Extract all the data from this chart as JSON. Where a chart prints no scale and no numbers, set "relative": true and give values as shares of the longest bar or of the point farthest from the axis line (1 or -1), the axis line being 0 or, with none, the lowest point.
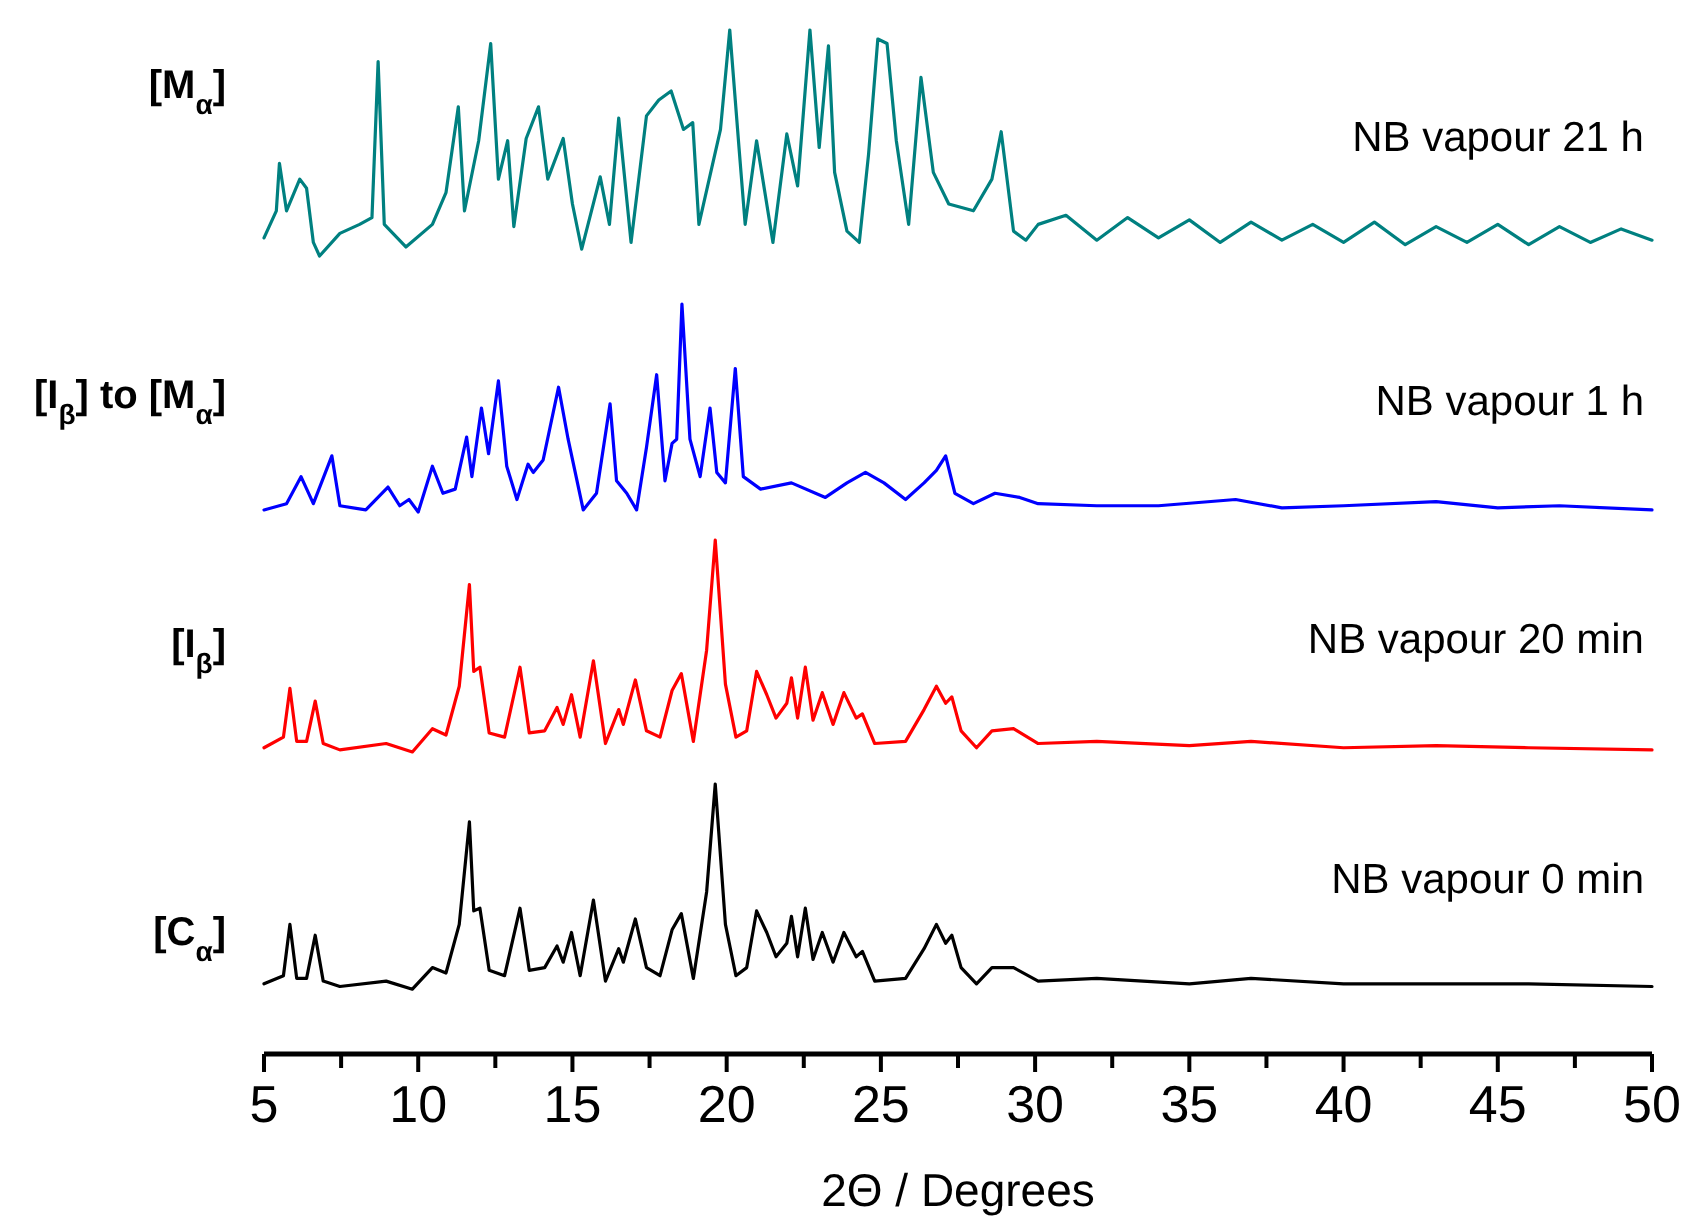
{
  "chart_data": [
    {
      "type": "line",
      "relative": true,
      "xlim": [
        5,
        50
      ],
      "tick_labels": false,
      "annotations": [
        "[M$_{α}$]"
      ],
      "series": [
        {
          "name": "NB vapour 21 h",
          "color": "#008080",
          "x": [
            5.0,
            5.4,
            5.5,
            5.73,
            6.16,
            6.38,
            6.6,
            6.8,
            7.46,
            8.1,
            8.5,
            8.7,
            8.9,
            9.6,
            10.46,
            10.9,
            11.3,
            11.5,
            11.96,
            12.35,
            12.6,
            12.9,
            13.1,
            13.5,
            13.9,
            14.2,
            14.7,
            15.0,
            15.3,
            15.9,
            16.2,
            16.5,
            16.9,
            17.4,
            17.8,
            18.2,
            18.6,
            18.9,
            19.1,
            19.8,
            20.1,
            20.4,
            20.6,
            20.97,
            21.5,
            21.95,
            22.3,
            22.7,
            23.0,
            23.3,
            23.5,
            23.9,
            24.3,
            24.6,
            24.9,
            25.2,
            25.5,
            25.9,
            26.3,
            26.7,
            27.2,
            28.0,
            28.6,
            28.9,
            29.3,
            29.7,
            30.1,
            31,
            32,
            33,
            34,
            35,
            36,
            37,
            38,
            39,
            40,
            41,
            42,
            43,
            44,
            45,
            46,
            47,
            48,
            49,
            50
          ],
          "values": [
            0.08,
            0.2,
            0.41,
            0.2,
            0.34,
            0.3,
            0.06,
            0,
            0.1,
            0.14,
            0.17,
            0.86,
            0.14,
            0.04,
            0.14,
            0.28,
            0.66,
            0.2,
            0.51,
            0.94,
            0.34,
            0.51,
            0.13,
            0.52,
            0.66,
            0.34,
            0.52,
            0.23,
            0.03,
            0.35,
            0.14,
            0.61,
            0.06,
            0.62,
            0.69,
            0.73,
            0.56,
            0.59,
            0.14,
            0.56,
            1.0,
            0.48,
            0.14,
            0.51,
            0.06,
            0.54,
            0.31,
            1.0,
            0.48,
            0.93,
            0.37,
            0.11,
            0.06,
            0.45,
            0.96,
            0.94,
            0.51,
            0.14,
            0.79,
            0.37,
            0.23,
            0.2,
            0.34,
            0.55,
            0.11,
            0.07,
            0.14,
            0.18,
            0.07,
            0.17,
            0.08,
            0.16,
            0.06,
            0.15,
            0.07,
            0.14,
            0.06,
            0.15,
            0.05,
            0.13,
            0.06,
            0.14,
            0.05,
            0.13,
            0.06,
            0.12,
            0.07
          ]
        }
      ]
    },
    {
      "type": "line",
      "relative": true,
      "xlim": [
        5,
        50
      ],
      "tick_labels": false,
      "annotations": [
        "[I$_{β}$] to [M$_{α}$]"
      ],
      "series": [
        {
          "name": "NB vapour 1 h",
          "color": "#0000ff",
          "x": [
            5.0,
            5.73,
            6.2,
            6.6,
            7.2,
            7.46,
            8.3,
            9.02,
            9.4,
            9.7,
            10.0,
            10.46,
            10.8,
            11.2,
            11.57,
            11.74,
            12.05,
            12.28,
            12.6,
            12.87,
            13.2,
            13.56,
            13.73,
            14.05,
            14.55,
            14.86,
            15.35,
            15.78,
            16.22,
            16.43,
            16.76,
            17.08,
            17.4,
            17.73,
            18.0,
            18.23,
            18.38,
            18.55,
            18.81,
            19.14,
            19.46,
            19.68,
            19.96,
            20.28,
            20.54,
            21.1,
            22.1,
            23.2,
            23.9,
            24.5,
            25.1,
            25.8,
            26.4,
            26.8,
            27.1,
            27.4,
            28.0,
            28.7,
            29.5,
            30.1,
            32,
            34,
            36.5,
            38,
            40,
            43,
            45,
            47,
            50
          ],
          "values": [
            0.01,
            0.04,
            0.17,
            0.04,
            0.27,
            0.03,
            0.01,
            0.12,
            0.03,
            0.06,
            0,
            0.22,
            0.09,
            0.11,
            0.36,
            0.17,
            0.5,
            0.28,
            0.63,
            0.22,
            0.06,
            0.23,
            0.19,
            0.25,
            0.6,
            0.35,
            0.01,
            0.09,
            0.52,
            0.15,
            0.09,
            0.01,
            0.31,
            0.66,
            0.15,
            0.33,
            0.35,
            1.0,
            0.35,
            0.17,
            0.5,
            0.19,
            0.14,
            0.69,
            0.17,
            0.11,
            0.14,
            0.07,
            0.14,
            0.19,
            0.14,
            0.06,
            0.14,
            0.2,
            0.27,
            0.09,
            0.04,
            0.09,
            0.07,
            0.04,
            0.03,
            0.03,
            0.06,
            0.02,
            0.03,
            0.05,
            0.02,
            0.03,
            0.01
          ]
        }
      ]
    },
    {
      "type": "line",
      "relative": true,
      "xlim": [
        5,
        50
      ],
      "tick_labels": false,
      "annotations": [
        "[I$_{β}$]"
      ],
      "series": [
        {
          "name": "NB vapour 20 min",
          "color": "#ff0000",
          "x": [
            5.0,
            5.63,
            5.84,
            6.06,
            6.38,
            6.66,
            6.92,
            7.46,
            8.96,
            9.81,
            10.46,
            10.9,
            11.33,
            11.66,
            11.8,
            12.0,
            12.3,
            12.8,
            13.3,
            13.6,
            14.1,
            14.5,
            14.7,
            14.97,
            15.25,
            15.68,
            16.07,
            16.5,
            16.65,
            17.04,
            17.4,
            17.84,
            18.23,
            18.53,
            18.92,
            19.35,
            19.63,
            19.96,
            20.3,
            20.65,
            20.97,
            21.3,
            21.6,
            21.95,
            22.1,
            22.3,
            22.55,
            22.8,
            23.1,
            23.45,
            23.8,
            24.2,
            24.4,
            24.8,
            25.8,
            26.4,
            26.8,
            27.1,
            27.3,
            27.6,
            28.1,
            28.6,
            29.3,
            30.1,
            32,
            35,
            37,
            40,
            43,
            46,
            50
          ],
          "values": [
            0.02,
            0.07,
            0.3,
            0.05,
            0.05,
            0.24,
            0.04,
            0.01,
            0.04,
            0,
            0.11,
            0.08,
            0.31,
            0.79,
            0.38,
            0.4,
            0.09,
            0.07,
            0.4,
            0.09,
            0.1,
            0.21,
            0.13,
            0.27,
            0.07,
            0.43,
            0.04,
            0.2,
            0.13,
            0.34,
            0.1,
            0.07,
            0.29,
            0.37,
            0.05,
            0.48,
            1.0,
            0.32,
            0.07,
            0.1,
            0.38,
            0.27,
            0.16,
            0.23,
            0.35,
            0.16,
            0.4,
            0.15,
            0.28,
            0.13,
            0.28,
            0.16,
            0.18,
            0.04,
            0.05,
            0.2,
            0.31,
            0.23,
            0.26,
            0.1,
            0.02,
            0.1,
            0.11,
            0.04,
            0.05,
            0.03,
            0.05,
            0.02,
            0.03,
            0.02,
            0.01
          ]
        }
      ]
    },
    {
      "type": "line",
      "relative": true,
      "xlim": [
        5,
        50
      ],
      "tick_labels": "x",
      "xlabel": "2Θ / Degrees",
      "annotations": [
        "[C$_{α}$]"
      ],
      "xticks": [
        5,
        {
          "value": 7.5,
          "label": null
        },
        10,
        {
          "value": 12.5,
          "label": null
        },
        15,
        {
          "value": 17.5,
          "label": null
        },
        20,
        {
          "value": 22.5,
          "label": null
        },
        25,
        {
          "value": 27.5,
          "label": null
        },
        30,
        {
          "value": 32.5,
          "label": null
        },
        35,
        {
          "value": 37.5,
          "label": null
        },
        40,
        {
          "value": 42.5,
          "label": null
        },
        45,
        {
          "value": 47.5,
          "label": null
        },
        50
      ],
      "series": [
        {
          "name": "NB vapour 0 min",
          "color": "#000000",
          "x": [
            5.0,
            5.63,
            5.84,
            6.06,
            6.38,
            6.66,
            6.92,
            7.46,
            8.96,
            9.81,
            10.46,
            10.9,
            11.33,
            11.66,
            11.8,
            12.0,
            12.3,
            12.8,
            13.3,
            13.6,
            14.1,
            14.5,
            14.7,
            14.97,
            15.25,
            15.68,
            16.07,
            16.5,
            16.65,
            17.04,
            17.4,
            17.84,
            18.23,
            18.53,
            18.92,
            19.35,
            19.63,
            19.96,
            20.3,
            20.65,
            20.97,
            21.3,
            21.6,
            21.95,
            22.1,
            22.3,
            22.55,
            22.8,
            23.1,
            23.45,
            23.8,
            24.2,
            24.4,
            24.8,
            25.8,
            26.4,
            26.8,
            27.1,
            27.3,
            27.6,
            28.1,
            28.6,
            29.3,
            30.1,
            32,
            35,
            37,
            40,
            43,
            46,
            50
          ],
          "values": [
            0.26,
            0.29,
            0.48,
            0.28,
            0.28,
            0.44,
            0.27,
            0.25,
            0.27,
            0.24,
            0.32,
            0.3,
            0.48,
            0.86,
            0.53,
            0.54,
            0.31,
            0.29,
            0.54,
            0.31,
            0.32,
            0.4,
            0.34,
            0.45,
            0.29,
            0.57,
            0.27,
            0.39,
            0.34,
            0.5,
            0.32,
            0.29,
            0.46,
            0.52,
            0.28,
            0.6,
            1.0,
            0.48,
            0.29,
            0.32,
            0.53,
            0.45,
            0.36,
            0.41,
            0.51,
            0.36,
            0.54,
            0.35,
            0.45,
            0.34,
            0.45,
            0.36,
            0.38,
            0.27,
            0.28,
            0.39,
            0.48,
            0.41,
            0.44,
            0.32,
            0.26,
            0.32,
            0.32,
            0.27,
            0.28,
            0.26,
            0.28,
            0.26,
            0.26,
            0.26,
            0.25
          ]
        }
      ]
    }
  ]
}
